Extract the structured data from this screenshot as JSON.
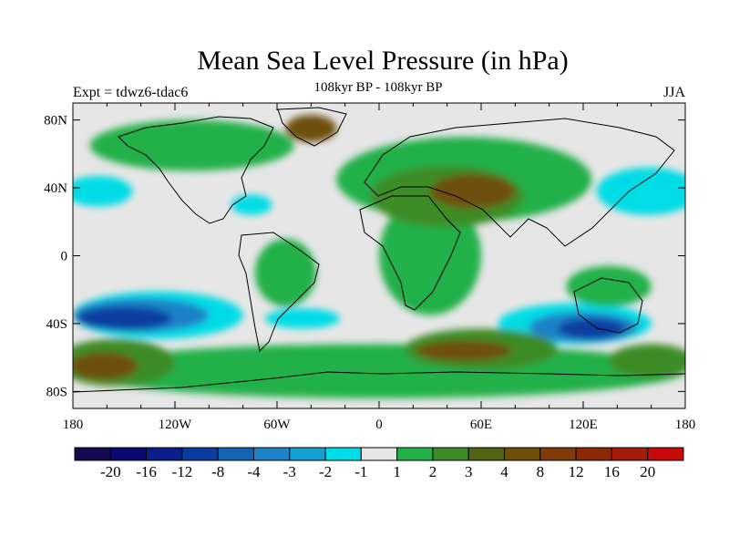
{
  "title": "Mean Sea Level Pressure (in hPa)",
  "subtitle": "108kyr BP - 108kyr BP",
  "left_label": "Expt = tdwz6-tdac6",
  "right_label": "JJA",
  "map": {
    "lon_range": [
      -180,
      180
    ],
    "lat_range": [
      -90,
      90
    ],
    "lat_ticks": [
      {
        "value": 80,
        "label": "80N"
      },
      {
        "value": 40,
        "label": "40N"
      },
      {
        "value": 0,
        "label": "0"
      },
      {
        "value": -40,
        "label": "40S"
      },
      {
        "value": -80,
        "label": "80S"
      }
    ],
    "lon_ticks": [
      {
        "value": -180,
        "label": "180"
      },
      {
        "value": -120,
        "label": "120W"
      },
      {
        "value": -60,
        "label": "60W"
      },
      {
        "value": 0,
        "label": "0"
      },
      {
        "value": 60,
        "label": "60E"
      },
      {
        "value": 120,
        "label": "120E"
      },
      {
        "value": 180,
        "label": "180"
      }
    ]
  },
  "colorbar": {
    "colors": [
      "#140a50",
      "#0a0a6e",
      "#0a1e8c",
      "#0a3ca0",
      "#1464b4",
      "#1e82c8",
      "#14a0d2",
      "#00dce6",
      "#e6e6e6",
      "#22b04a",
      "#3c8c28",
      "#506414",
      "#6e500a",
      "#7d3c0a",
      "#8c2808",
      "#a01e0a",
      "#c80a0a"
    ],
    "labels": [
      "-20",
      "-16",
      "-12",
      "-8",
      "-4",
      "-3",
      "-2",
      "-1",
      "1",
      "2",
      "3",
      "4",
      "8",
      "12",
      "16",
      "20"
    ]
  },
  "regions": [
    {
      "name": "north-pacific-blue",
      "color": "#14a0d2",
      "lon": 162,
      "lat": 38,
      "rx": 20,
      "ry": 10
    },
    {
      "name": "north-pacific-cyan",
      "color": "#00dce6",
      "lon": 158,
      "lat": 38,
      "rx": 30,
      "ry": 14
    },
    {
      "name": "east-pacific-cyan",
      "color": "#00dce6",
      "lon": -165,
      "lat": 38,
      "rx": 20,
      "ry": 9
    },
    {
      "name": "atlantic-cyan",
      "color": "#00dce6",
      "lon": -75,
      "lat": 30,
      "rx": 12,
      "ry": 6
    },
    {
      "name": "arctic-cyan",
      "color": "#00dce6",
      "lon": 40,
      "lat": 60,
      "rx": 8,
      "ry": 4
    },
    {
      "name": "south-pacific-cyan",
      "color": "#00dce6",
      "lon": -130,
      "lat": -35,
      "rx": 50,
      "ry": 14
    },
    {
      "name": "south-pacific-blue",
      "color": "#1e82c8",
      "lon": -140,
      "lat": -35,
      "rx": 40,
      "ry": 10
    },
    {
      "name": "south-pacific-deep",
      "color": "#0a3ca0",
      "lon": -150,
      "lat": -37,
      "rx": 28,
      "ry": 7
    },
    {
      "name": "south-indian-cyan",
      "color": "#00dce6",
      "lon": 115,
      "lat": -40,
      "rx": 45,
      "ry": 12
    },
    {
      "name": "south-indian-blue",
      "color": "#1e82c8",
      "lon": 120,
      "lat": -42,
      "rx": 32,
      "ry": 9
    },
    {
      "name": "south-indian-deep",
      "color": "#0a3ca0",
      "lon": 125,
      "lat": -43,
      "rx": 20,
      "ry": 6
    },
    {
      "name": "south-atlantic-cyan",
      "color": "#00dce6",
      "lon": -45,
      "lat": -37,
      "rx": 22,
      "ry": 6
    },
    {
      "name": "africa-green",
      "color": "#22b04a",
      "lon": 30,
      "lat": 0,
      "rx": 30,
      "ry": 35
    },
    {
      "name": "eurasia-green",
      "color": "#22b04a",
      "lon": 50,
      "lat": 45,
      "rx": 75,
      "ry": 25
    },
    {
      "name": "eurasia-olive",
      "color": "#3c8c28",
      "lon": 40,
      "lat": 35,
      "rx": 45,
      "ry": 18
    },
    {
      "name": "eurasia-brown",
      "color": "#6e500a",
      "lon": 55,
      "lat": 38,
      "rx": 25,
      "ry": 10
    },
    {
      "name": "greenland-brown",
      "color": "#6e500a",
      "lon": -40,
      "lat": 75,
      "rx": 15,
      "ry": 8
    },
    {
      "name": "north-america-green",
      "color": "#22b04a",
      "lon": -110,
      "lat": 65,
      "rx": 60,
      "ry": 15
    },
    {
      "name": "south-america-green",
      "color": "#22b04a",
      "lon": -55,
      "lat": -10,
      "rx": 18,
      "ry": 20
    },
    {
      "name": "southern-ocean-green",
      "color": "#22b04a",
      "lon": 0,
      "lat": -68,
      "rx": 180,
      "ry": 16
    },
    {
      "name": "southern-olive-west",
      "color": "#3c8c28",
      "lon": -155,
      "lat": -63,
      "rx": 35,
      "ry": 14
    },
    {
      "name": "southern-brown-west",
      "color": "#6e500a",
      "lon": -162,
      "lat": -65,
      "rx": 20,
      "ry": 8
    },
    {
      "name": "southern-olive-east",
      "color": "#3c8c28",
      "lon": 60,
      "lat": -55,
      "rx": 45,
      "ry": 12
    },
    {
      "name": "southern-brown-east",
      "color": "#6e500a",
      "lon": 50,
      "lat": -56,
      "rx": 28,
      "ry": 6
    },
    {
      "name": "southern-olive-far-east",
      "color": "#3c8c28",
      "lon": 160,
      "lat": -62,
      "rx": 25,
      "ry": 10
    },
    {
      "name": "australia-green",
      "color": "#22b04a",
      "lon": 135,
      "lat": -18,
      "rx": 25,
      "ry": 12
    }
  ]
}
